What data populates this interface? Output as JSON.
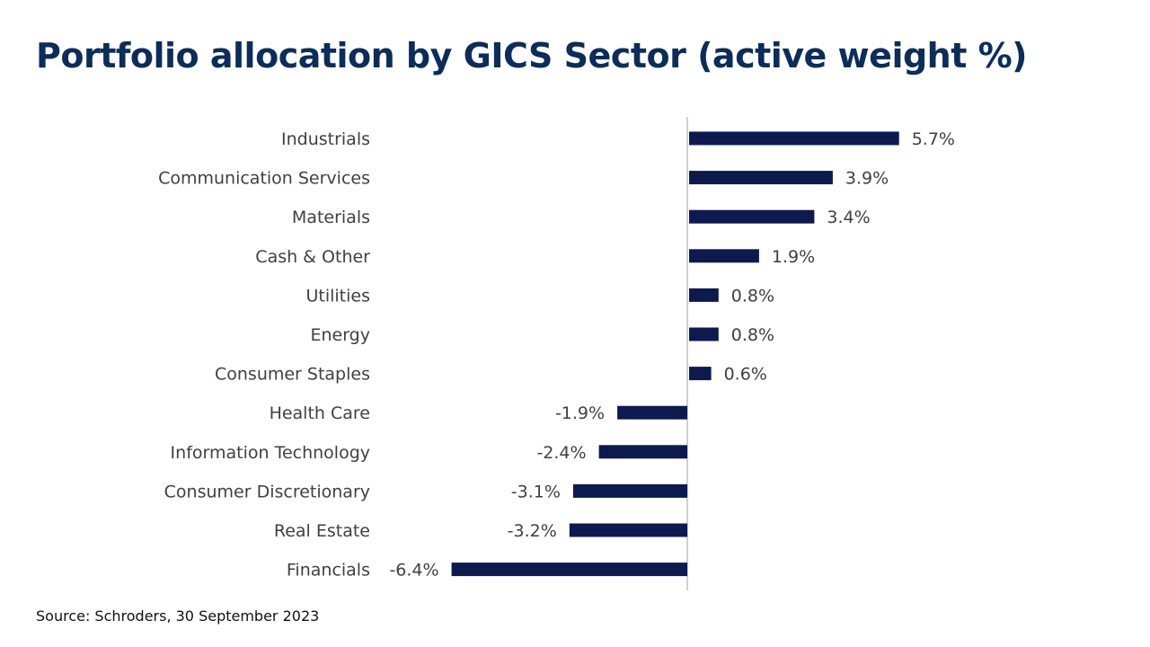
{
  "slide": {
    "title": "Portfolio allocation by GICS Sector (active weight %)",
    "source": "Source: Schroders, 30 September 2023"
  },
  "colors": {
    "bar": "#0d1a4f",
    "axis": "#d0d0d0",
    "label": "#404040",
    "title": "#0b2d5b"
  },
  "chart_data": {
    "type": "bar",
    "orientation": "horizontal",
    "title": "Portfolio allocation by GICS Sector (active weight %)",
    "xlabel": "",
    "ylabel": "",
    "unit": "%",
    "categories": [
      "Industrials",
      "Communication Services",
      "Materials",
      "Cash & Other",
      "Utilities",
      "Energy",
      "Consumer Staples",
      "Health Care",
      "Information Technology",
      "Consumer Discretionary",
      "Real Estate",
      "Financials"
    ],
    "values": [
      5.7,
      3.9,
      3.4,
      1.9,
      0.8,
      0.8,
      0.6,
      -1.9,
      -2.4,
      -3.1,
      -3.2,
      -6.4
    ],
    "data_labels": [
      "5.7%",
      "3.9%",
      "3.4%",
      "1.9%",
      "0.8%",
      "0.8%",
      "0.6%",
      "-1.9%",
      "-2.4%",
      "-3.1%",
      "-3.2%",
      "-6.4%"
    ],
    "xlim": [
      -6.4,
      5.7
    ],
    "grid": false,
    "legend": "none"
  }
}
